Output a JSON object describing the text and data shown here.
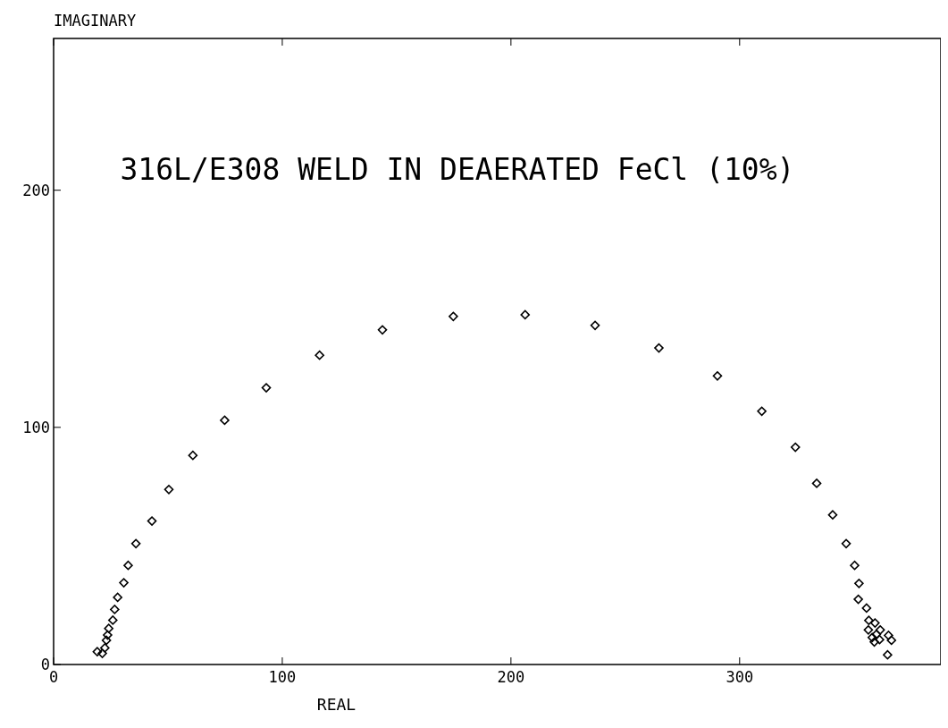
{
  "chart_data": {
    "type": "scatter",
    "title": "316L/E308 WELD IN DEAERATED FeCl (10%)",
    "xlabel": "REAL",
    "ylabel": "IMAGINARY",
    "marker": "diamond",
    "xlim": [
      0,
      388
    ],
    "ylim": [
      0,
      264
    ],
    "xticks": [
      0,
      100,
      200,
      300
    ],
    "yticks": [
      0,
      100,
      200
    ],
    "series": [
      {
        "color": "#000000",
        "x": [
          19.1,
          21.3,
          22.4,
          23.1,
          23.6,
          24.1,
          25.9,
          26.7,
          28.0,
          30.7,
          32.6,
          36.0,
          43.0,
          50.4,
          60.9,
          74.8,
          93.0,
          116.3,
          143.8,
          174.8,
          206.2,
          236.8,
          264.7,
          290.3,
          309.7,
          324.4,
          333.7,
          340.7,
          346.6,
          350.3,
          352.2,
          351.9,
          355.5,
          356.5,
          359.2,
          356.3,
          361.5,
          359.8,
          358.0,
          365.1,
          361.2,
          358.9,
          366.4,
          364.7
        ],
        "values": [
          5.4,
          4.7,
          7.0,
          10.2,
          12.4,
          15.2,
          18.7,
          23.2,
          28.3,
          34.5,
          41.8,
          51.0,
          60.5,
          73.8,
          88.2,
          103.0,
          116.7,
          130.4,
          141.1,
          146.8,
          147.5,
          143.0,
          133.5,
          121.7,
          106.8,
          91.6,
          76.4,
          63.1,
          51.0,
          41.8,
          34.2,
          27.5,
          23.8,
          18.6,
          17.5,
          14.6,
          14.6,
          12.7,
          11.4,
          12.3,
          10.5,
          9.5,
          10.2,
          4.1
        ]
      }
    ]
  }
}
